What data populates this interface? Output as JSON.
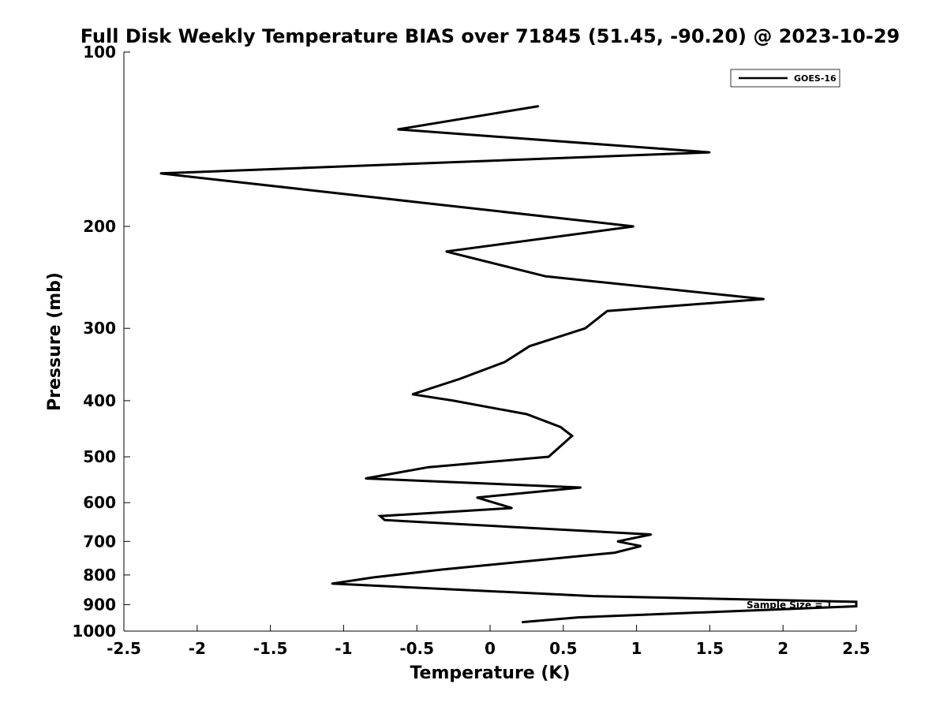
{
  "chart_data": {
    "type": "line",
    "title": "Full Disk Weekly Temperature BIAS over 71845 (51.45, -90.20) @ 2023-10-29",
    "xlabel": "Temperature (K)",
    "ylabel": "Pressure (mb)",
    "xlim": [
      -2.5,
      2.5
    ],
    "ylim": [
      1000,
      100
    ],
    "y_scale": "log",
    "y_reversed": true,
    "grid": false,
    "legend_position": "top-right",
    "x_ticks": [
      "-2.5",
      "-2",
      "-1.5",
      "-1",
      "-0.5",
      "0",
      "0.5",
      "1",
      "1.5",
      "2",
      "2.5"
    ],
    "y_ticks": [
      "100",
      "200",
      "300",
      "400",
      "500",
      "600",
      "700",
      "800",
      "900",
      "1000"
    ],
    "annotation": "Sample Size = 1",
    "series": [
      {
        "name": "GOES-16",
        "color": "#000000",
        "points": [
          {
            "x": 0.33,
            "y": 124
          },
          {
            "x": -0.63,
            "y": 136
          },
          {
            "x": 1.5,
            "y": 149
          },
          {
            "x": -2.25,
            "y": 162
          },
          {
            "x": 0.98,
            "y": 200
          },
          {
            "x": -0.3,
            "y": 221
          },
          {
            "x": 0.38,
            "y": 244
          },
          {
            "x": 1.87,
            "y": 267
          },
          {
            "x": 0.8,
            "y": 280
          },
          {
            "x": 0.65,
            "y": 300
          },
          {
            "x": 0.27,
            "y": 322
          },
          {
            "x": 0.1,
            "y": 343
          },
          {
            "x": -0.21,
            "y": 367
          },
          {
            "x": -0.53,
            "y": 390
          },
          {
            "x": -0.25,
            "y": 400
          },
          {
            "x": 0.25,
            "y": 422
          },
          {
            "x": 0.48,
            "y": 444
          },
          {
            "x": 0.56,
            "y": 460
          },
          {
            "x": 0.4,
            "y": 500
          },
          {
            "x": -0.42,
            "y": 521
          },
          {
            "x": -0.85,
            "y": 545
          },
          {
            "x": 0.62,
            "y": 565
          },
          {
            "x": -0.09,
            "y": 588
          },
          {
            "x": 0.15,
            "y": 613
          },
          {
            "x": -0.75,
            "y": 633
          },
          {
            "x": -0.72,
            "y": 643
          },
          {
            "x": 1.1,
            "y": 681
          },
          {
            "x": 0.87,
            "y": 700
          },
          {
            "x": 1.03,
            "y": 713
          },
          {
            "x": 0.85,
            "y": 732
          },
          {
            "x": -0.33,
            "y": 783
          },
          {
            "x": -0.8,
            "y": 808
          },
          {
            "x": -1.08,
            "y": 828
          },
          {
            "x": 0.7,
            "y": 870
          },
          {
            "x": 2.5,
            "y": 890
          },
          {
            "x": 2.5,
            "y": 906
          },
          {
            "x": 0.6,
            "y": 947
          },
          {
            "x": 0.22,
            "y": 965
          }
        ]
      }
    ]
  }
}
